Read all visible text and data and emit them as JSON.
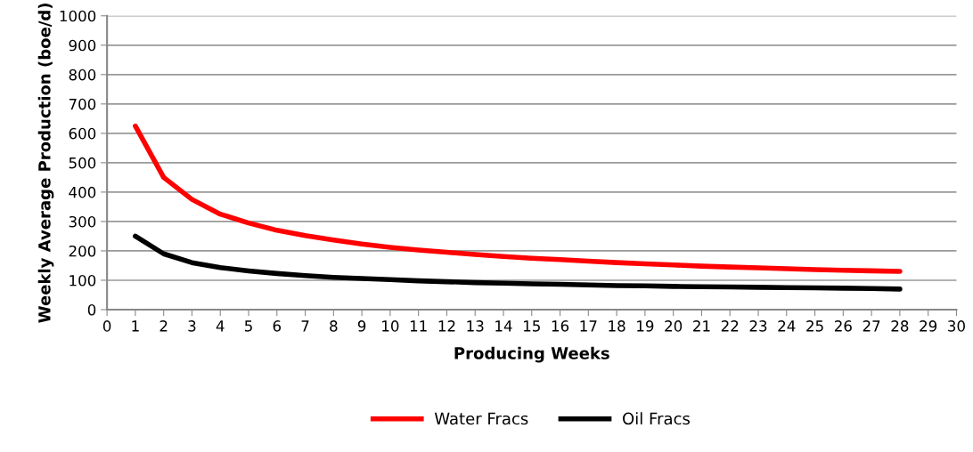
{
  "chart_data": {
    "type": "line",
    "xlabel": "Producing Weeks",
    "ylabel": "Weekly Average Production (boe/d)",
    "x": [
      1,
      2,
      3,
      4,
      5,
      6,
      7,
      8,
      9,
      10,
      11,
      12,
      13,
      14,
      15,
      16,
      17,
      18,
      19,
      20,
      21,
      22,
      23,
      24,
      25,
      26,
      27,
      28
    ],
    "series": [
      {
        "name": "Water Fracs",
        "color": "#ff0000",
        "values": [
          625,
          450,
          375,
          325,
          295,
          270,
          252,
          237,
          223,
          212,
          203,
          195,
          188,
          181,
          175,
          170,
          165,
          160,
          156,
          152,
          148,
          145,
          142,
          139,
          136,
          134,
          132,
          130
        ]
      },
      {
        "name": "Oil Fracs",
        "color": "#000000",
        "values": [
          250,
          190,
          160,
          143,
          132,
          123,
          116,
          110,
          106,
          102,
          98,
          95,
          92,
          90,
          88,
          86,
          84,
          82,
          81,
          79,
          78,
          77,
          76,
          75,
          74,
          73,
          72,
          70
        ]
      }
    ],
    "xlim": [
      0,
      30
    ],
    "xticks": [
      0,
      1,
      2,
      3,
      4,
      5,
      6,
      7,
      8,
      9,
      10,
      11,
      12,
      13,
      14,
      15,
      16,
      17,
      18,
      19,
      20,
      21,
      22,
      23,
      24,
      25,
      26,
      27,
      28,
      29,
      30
    ],
    "ylim": [
      0,
      1000
    ],
    "yticks": [
      0,
      100,
      200,
      300,
      400,
      500,
      600,
      700,
      800,
      900,
      1000
    ],
    "grid": "y",
    "legend": "bottom",
    "marker": "none",
    "line_style": "solid"
  }
}
